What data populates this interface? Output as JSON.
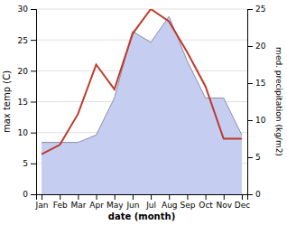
{
  "chart_data": {
    "type": "line",
    "xlabel": "date (month)",
    "ylabel": "max temp (C)",
    "y2label": "med. precipitation (kg/m2)",
    "categories": [
      "Jan",
      "Feb",
      "Mar",
      "Apr",
      "May",
      "Jun",
      "Jul",
      "Aug",
      "Sep",
      "Oct",
      "Nov",
      "Dec"
    ],
    "series": [
      {
        "type": "area",
        "axis": "y2",
        "color": "#c5cdf0",
        "values": [
          7.0,
          7.0,
          7.0,
          8.0,
          13.0,
          22.0,
          20.5,
          24.0,
          18.0,
          13.0,
          13.0,
          8.0
        ]
      },
      {
        "type": "line",
        "color": "#c0392b",
        "values": [
          6.5,
          8.0,
          13.0,
          21.0,
          17.0,
          26.0,
          30.0,
          28.0,
          23.0,
          17.5,
          9.0,
          9.0
        ]
      }
    ],
    "ylim": [
      0,
      30
    ],
    "yticks": [
      0,
      5,
      10,
      15,
      20,
      25,
      30
    ],
    "y2lim": [
      0,
      25
    ],
    "y2ticks": [
      0,
      5,
      10,
      15,
      20,
      25
    ],
    "grid": true
  }
}
